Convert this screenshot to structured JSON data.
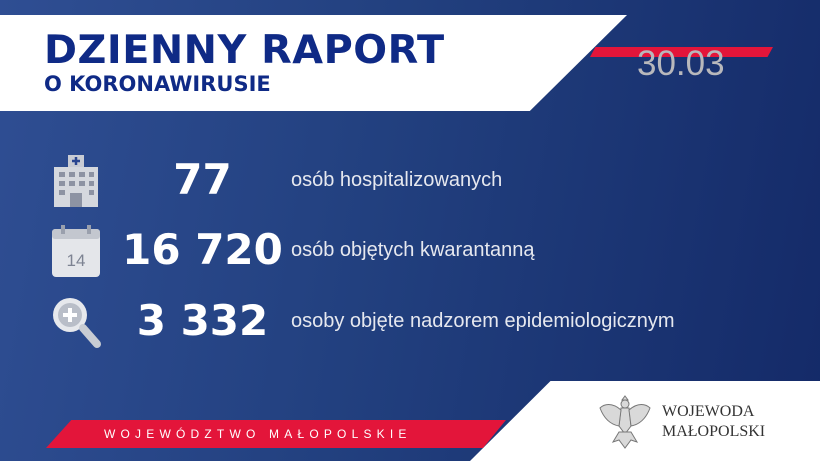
{
  "header": {
    "title": "DZIENNY RAPORT",
    "subtitle": "O KORONAWIRUSIE",
    "date": "30.03"
  },
  "stats": [
    {
      "icon": "hospital-icon",
      "value": "77",
      "label": "osób hospitalizowanych"
    },
    {
      "icon": "calendar-icon",
      "calendar_day": "14",
      "value": "16 720",
      "label": "osób objętych kwarantanną"
    },
    {
      "icon": "magnifier-plus-icon",
      "value": "3 332",
      "label": "osoby objęte nadzorem epidemiologicznym"
    }
  ],
  "footer": {
    "region": "WOJEWÓDZTWO MAŁOPOLSKIE",
    "logo_line1": "WOJEWODA",
    "logo_line2": "MAŁOPOLSKI"
  },
  "colors": {
    "navy": "#0f2a86",
    "red": "#e3153a",
    "background": "#22407f"
  }
}
